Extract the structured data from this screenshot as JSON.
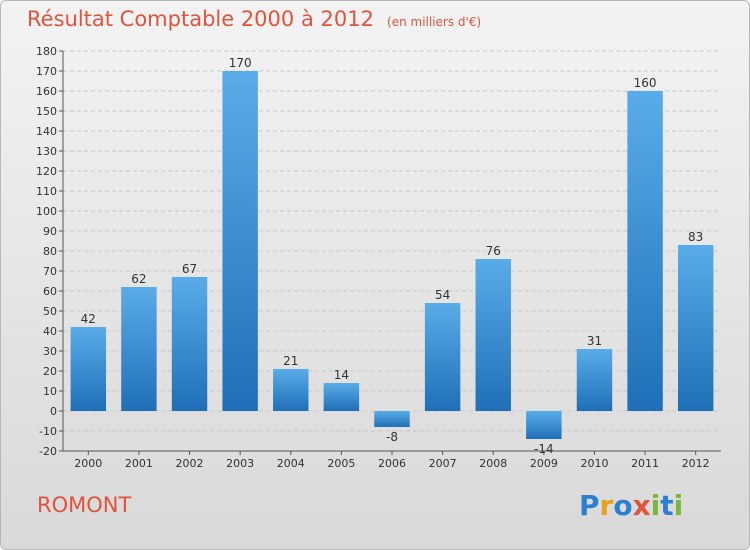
{
  "title": "Résultat Comptable 2000 à 2012",
  "subtitle": "(en milliers d'€)",
  "city": "ROMONT",
  "logo": {
    "text": "Proxiti",
    "letters": [
      "P",
      "r",
      "o",
      "x",
      "i",
      "t",
      "i"
    ],
    "colors": [
      "#2f7fd0",
      "#e8a21c",
      "#2f7fd0",
      "#e0533c",
      "#7bb83a",
      "#2f7fd0",
      "#7bb83a"
    ]
  },
  "colors": {
    "bar_light": "#5aace8",
    "bar_dark": "#1f6fb8",
    "title": "#e0533c",
    "grid": "#c8c8c8"
  },
  "chart_data": {
    "type": "bar",
    "title": "Résultat Comptable 2000 à 2012",
    "xlabel": "",
    "ylabel": "",
    "categories": [
      "2000",
      "2001",
      "2002",
      "2003",
      "2004",
      "2005",
      "2006",
      "2007",
      "2008",
      "2009",
      "2010",
      "2011",
      "2012"
    ],
    "values": [
      42,
      62,
      67,
      170,
      21,
      14,
      -8,
      54,
      76,
      -14,
      31,
      160,
      83
    ],
    "ylim": [
      -20,
      180
    ],
    "yticks": [
      -20,
      -10,
      0,
      10,
      20,
      30,
      40,
      50,
      60,
      70,
      80,
      90,
      100,
      110,
      120,
      130,
      140,
      150,
      160,
      170,
      180
    ],
    "grid": true
  }
}
